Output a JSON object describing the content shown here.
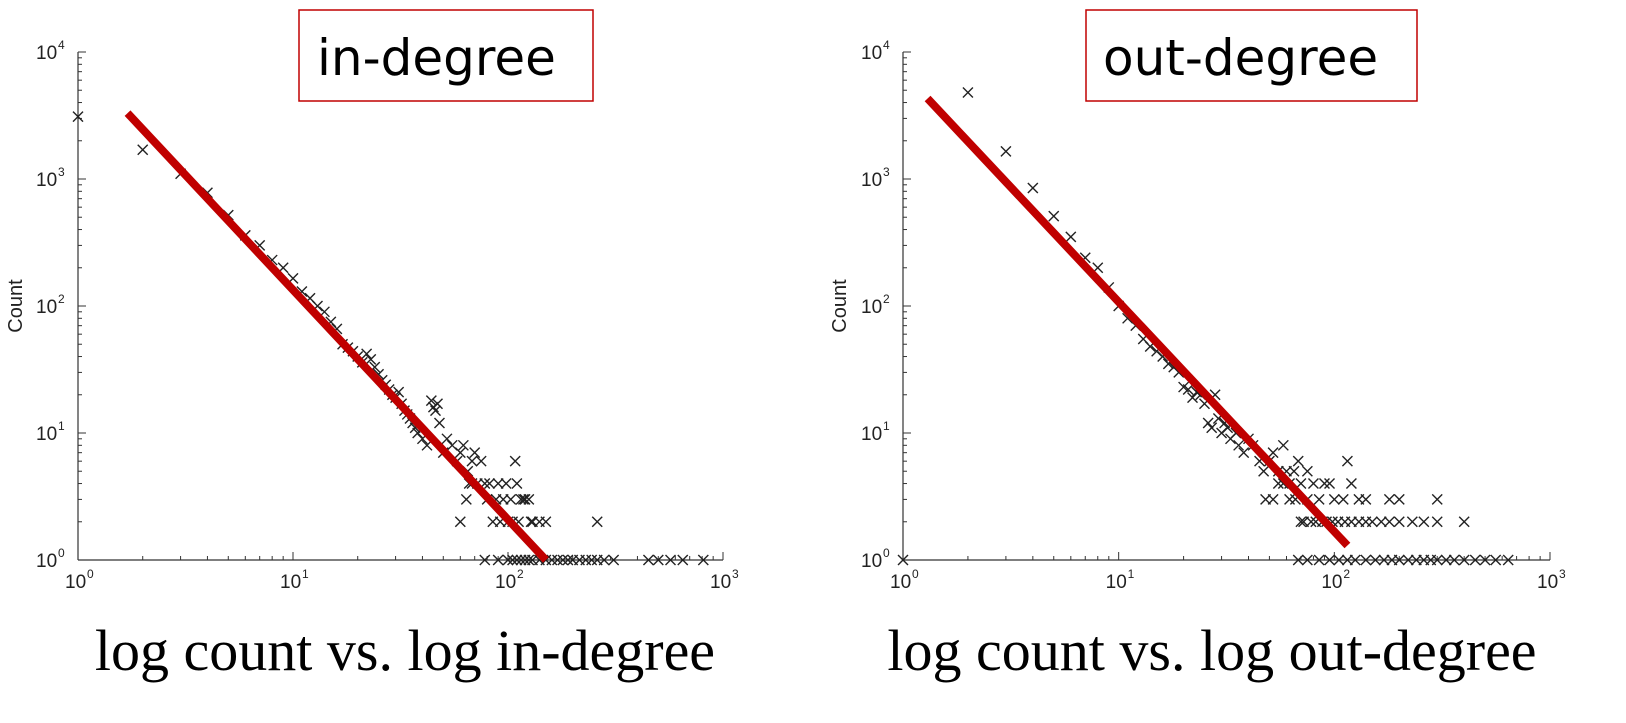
{
  "chart_data": [
    {
      "type": "scatter",
      "annotation": "in-degree",
      "caption": "log count vs. log in-degree",
      "ylabel": "Count",
      "x_scale": "log",
      "y_scale": "log",
      "xlim": [
        1,
        1000
      ],
      "ylim": [
        1,
        10000
      ],
      "x_ticks": [
        {
          "base": "10",
          "exp": "0"
        },
        {
          "base": "10",
          "exp": "1"
        },
        {
          "base": "10",
          "exp": "2"
        },
        {
          "base": "10",
          "exp": "3"
        }
      ],
      "y_ticks": [
        {
          "base": "10",
          "exp": "0"
        },
        {
          "base": "10",
          "exp": "1"
        },
        {
          "base": "10",
          "exp": "2"
        },
        {
          "base": "10",
          "exp": "3"
        },
        {
          "base": "10",
          "exp": "4"
        }
      ],
      "marker": "x",
      "point_color": "#222222",
      "fit_color": "#c00000",
      "annotation_border_color": "#c00000",
      "fit_line": {
        "x": [
          1.7,
          150
        ],
        "y": [
          3300,
          1
        ]
      },
      "points": [
        [
          1,
          3100
        ],
        [
          2,
          1700
        ],
        [
          3,
          1100
        ],
        [
          4,
          780
        ],
        [
          5,
          520
        ],
        [
          6,
          360
        ],
        [
          7,
          300
        ],
        [
          8,
          230
        ],
        [
          9,
          200
        ],
        [
          10,
          165
        ],
        [
          11,
          130
        ],
        [
          12,
          115
        ],
        [
          13,
          100
        ],
        [
          14,
          90
        ],
        [
          15,
          75
        ],
        [
          16,
          66
        ],
        [
          17,
          50
        ],
        [
          18,
          47
        ],
        [
          19,
          44
        ],
        [
          20,
          40
        ],
        [
          21,
          36
        ],
        [
          22,
          42
        ],
        [
          23,
          38
        ],
        [
          24,
          33
        ],
        [
          25,
          29
        ],
        [
          26,
          26
        ],
        [
          27,
          24
        ],
        [
          28,
          22
        ],
        [
          29,
          20
        ],
        [
          30,
          19
        ],
        [
          31,
          21
        ],
        [
          32,
          17
        ],
        [
          33,
          15
        ],
        [
          34,
          14
        ],
        [
          35,
          13
        ],
        [
          36,
          12
        ],
        [
          37,
          11
        ],
        [
          38,
          10
        ],
        [
          40,
          9
        ],
        [
          42,
          8
        ],
        [
          44,
          18
        ],
        [
          45,
          16
        ],
        [
          46,
          15
        ],
        [
          47,
          17
        ],
        [
          48,
          12
        ],
        [
          50,
          7
        ],
        [
          52,
          9
        ],
        [
          55,
          8
        ],
        [
          58,
          6
        ],
        [
          60,
          7
        ],
        [
          62,
          8
        ],
        [
          65,
          5
        ],
        [
          68,
          6
        ],
        [
          70,
          7
        ],
        [
          60,
          2
        ],
        [
          64,
          3
        ],
        [
          66,
          4
        ],
        [
          68,
          4
        ],
        [
          72,
          4
        ],
        [
          75,
          6
        ],
        [
          78,
          4
        ],
        [
          80,
          3
        ],
        [
          82,
          4
        ],
        [
          85,
          2
        ],
        [
          88,
          3
        ],
        [
          90,
          4
        ],
        [
          92,
          2
        ],
        [
          95,
          3
        ],
        [
          98,
          4
        ],
        [
          100,
          2
        ],
        [
          103,
          3
        ],
        [
          105,
          2
        ],
        [
          108,
          6
        ],
        [
          110,
          4
        ],
        [
          112,
          2
        ],
        [
          115,
          3
        ],
        [
          118,
          3
        ],
        [
          120,
          3
        ],
        [
          125,
          3
        ],
        [
          128,
          2
        ],
        [
          130,
          2
        ],
        [
          140,
          2
        ],
        [
          150,
          2
        ],
        [
          260,
          2
        ],
        [
          78,
          1
        ],
        [
          90,
          1
        ],
        [
          100,
          1
        ],
        [
          105,
          1
        ],
        [
          110,
          1
        ],
        [
          115,
          1
        ],
        [
          120,
          1
        ],
        [
          125,
          1
        ],
        [
          130,
          1
        ],
        [
          140,
          1
        ],
        [
          150,
          1
        ],
        [
          160,
          1
        ],
        [
          170,
          1
        ],
        [
          180,
          1
        ],
        [
          190,
          1
        ],
        [
          200,
          1
        ],
        [
          215,
          1
        ],
        [
          230,
          1
        ],
        [
          245,
          1
        ],
        [
          260,
          1
        ],
        [
          280,
          1
        ],
        [
          310,
          1
        ],
        [
          450,
          1
        ],
        [
          500,
          1
        ],
        [
          570,
          1
        ],
        [
          650,
          1
        ],
        [
          810,
          1
        ]
      ]
    },
    {
      "type": "scatter",
      "annotation": "out-degree",
      "caption": "log count vs. log out-degree",
      "ylabel": "Count",
      "x_scale": "log",
      "y_scale": "log",
      "xlim": [
        1,
        1000
      ],
      "ylim": [
        1,
        10000
      ],
      "x_ticks": [
        {
          "base": "10",
          "exp": "0"
        },
        {
          "base": "10",
          "exp": "1"
        },
        {
          "base": "10",
          "exp": "2"
        },
        {
          "base": "10",
          "exp": "3"
        }
      ],
      "y_ticks": [
        {
          "base": "10",
          "exp": "0"
        },
        {
          "base": "10",
          "exp": "1"
        },
        {
          "base": "10",
          "exp": "2"
        },
        {
          "base": "10",
          "exp": "3"
        },
        {
          "base": "10",
          "exp": "4"
        }
      ],
      "marker": "x",
      "point_color": "#222222",
      "fit_color": "#c00000",
      "annotation_border_color": "#c00000",
      "fit_line": {
        "x": [
          1.3,
          115
        ],
        "y": [
          4300,
          1.3
        ]
      },
      "points": [
        [
          1,
          1
        ],
        [
          2,
          4800
        ],
        [
          3,
          1650
        ],
        [
          4,
          850
        ],
        [
          5,
          510
        ],
        [
          6,
          350
        ],
        [
          7,
          240
        ],
        [
          8,
          200
        ],
        [
          9,
          140
        ],
        [
          10,
          100
        ],
        [
          11,
          80
        ],
        [
          12,
          70
        ],
        [
          13,
          55
        ],
        [
          14,
          48
        ],
        [
          15,
          44
        ],
        [
          16,
          40
        ],
        [
          17,
          35
        ],
        [
          18,
          33
        ],
        [
          19,
          30
        ],
        [
          20,
          23
        ],
        [
          21,
          22
        ],
        [
          22,
          19
        ],
        [
          23,
          21
        ],
        [
          24,
          20
        ],
        [
          25,
          17
        ],
        [
          26,
          12
        ],
        [
          27,
          11
        ],
        [
          28,
          20
        ],
        [
          29,
          13
        ],
        [
          30,
          10
        ],
        [
          31,
          12
        ],
        [
          32,
          11
        ],
        [
          33,
          9
        ],
        [
          35,
          10
        ],
        [
          36,
          8
        ],
        [
          38,
          7
        ],
        [
          40,
          9
        ],
        [
          42,
          8
        ],
        [
          45,
          6
        ],
        [
          47,
          5
        ],
        [
          50,
          6
        ],
        [
          52,
          7
        ],
        [
          55,
          5
        ],
        [
          58,
          8
        ],
        [
          60,
          5
        ],
        [
          62,
          4
        ],
        [
          65,
          5
        ],
        [
          68,
          6
        ],
        [
          70,
          4
        ],
        [
          75,
          5
        ],
        [
          80,
          4
        ],
        [
          85,
          3
        ],
        [
          90,
          4
        ],
        [
          95,
          4
        ],
        [
          100,
          3
        ],
        [
          110,
          3
        ],
        [
          115,
          6
        ],
        [
          120,
          4
        ],
        [
          130,
          3
        ],
        [
          140,
          3
        ],
        [
          180,
          3
        ],
        [
          200,
          3
        ],
        [
          300,
          3
        ],
        [
          48,
          3
        ],
        [
          52,
          3
        ],
        [
          55,
          4
        ],
        [
          58,
          4
        ],
        [
          62,
          3
        ],
        [
          66,
          3
        ],
        [
          70,
          2
        ],
        [
          72,
          2
        ],
        [
          75,
          3
        ],
        [
          78,
          2
        ],
        [
          82,
          2
        ],
        [
          88,
          2
        ],
        [
          92,
          2
        ],
        [
          98,
          2
        ],
        [
          104,
          2
        ],
        [
          112,
          2
        ],
        [
          120,
          2
        ],
        [
          130,
          2
        ],
        [
          140,
          2
        ],
        [
          150,
          2
        ],
        [
          165,
          2
        ],
        [
          180,
          2
        ],
        [
          200,
          2
        ],
        [
          230,
          2
        ],
        [
          260,
          2
        ],
        [
          300,
          2
        ],
        [
          400,
          2
        ],
        [
          68,
          1
        ],
        [
          75,
          1
        ],
        [
          85,
          1
        ],
        [
          95,
          1
        ],
        [
          105,
          1
        ],
        [
          115,
          1
        ],
        [
          125,
          1
        ],
        [
          140,
          1
        ],
        [
          155,
          1
        ],
        [
          170,
          1
        ],
        [
          185,
          1
        ],
        [
          200,
          1
        ],
        [
          220,
          1
        ],
        [
          240,
          1
        ],
        [
          260,
          1
        ],
        [
          280,
          1
        ],
        [
          300,
          1
        ],
        [
          330,
          1
        ],
        [
          360,
          1
        ],
        [
          400,
          1
        ],
        [
          450,
          1
        ],
        [
          500,
          1
        ],
        [
          560,
          1
        ],
        [
          640,
          1
        ]
      ]
    }
  ]
}
